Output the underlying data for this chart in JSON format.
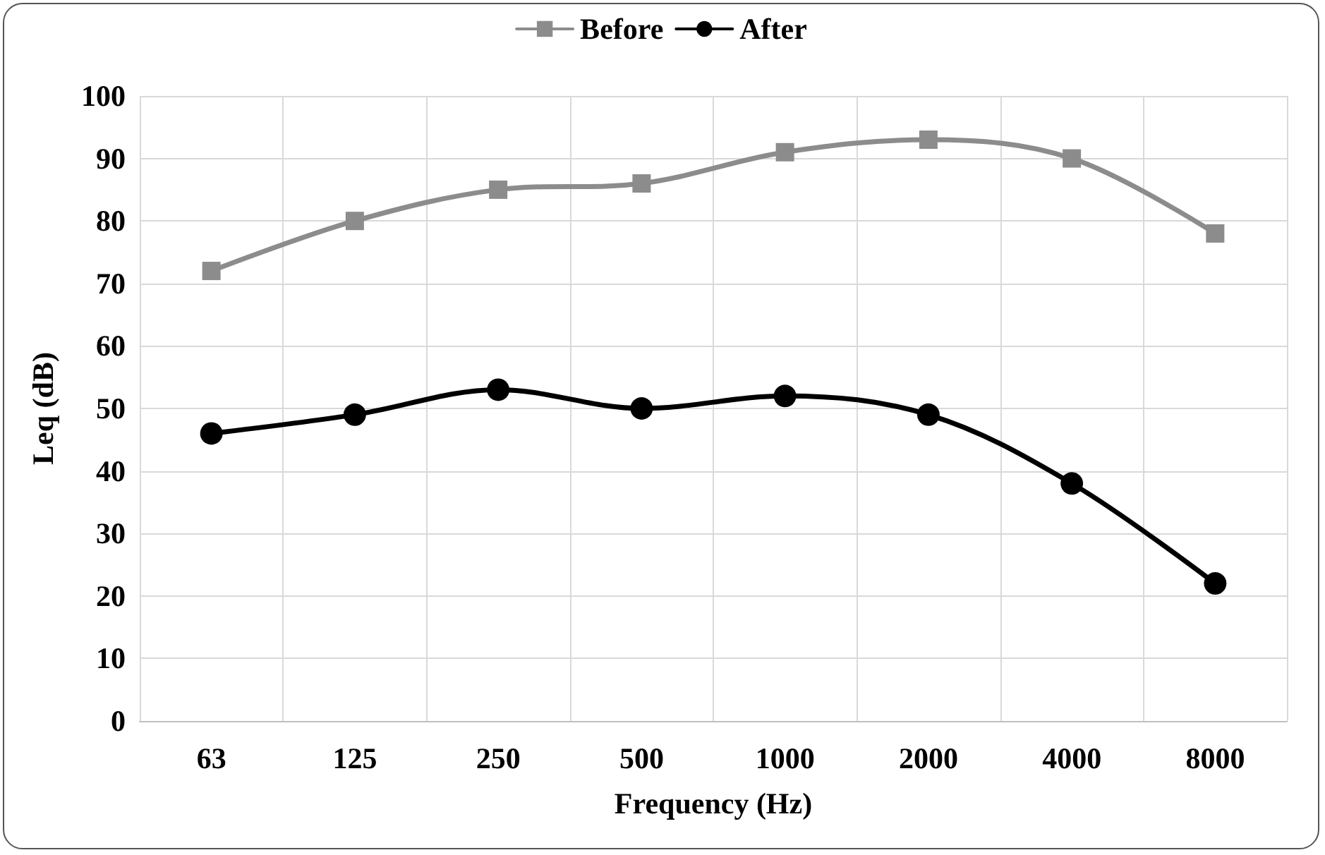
{
  "chart_data": {
    "type": "line",
    "xlabel": "Frequency (Hz)",
    "ylabel": "Leq (dB)",
    "categories": [
      "63",
      "125",
      "250",
      "500",
      "1000",
      "2000",
      "4000",
      "8000"
    ],
    "series": [
      {
        "name": "Before",
        "color": "#8c8c8c",
        "marker": "square",
        "values": [
          72,
          80,
          85,
          86,
          91,
          93,
          90,
          78
        ]
      },
      {
        "name": "After",
        "color": "#000000",
        "marker": "circle",
        "values": [
          46,
          49,
          53,
          50,
          52,
          49,
          38,
          22
        ]
      }
    ],
    "ylim": [
      0,
      100
    ],
    "yticks": [
      0,
      10,
      20,
      30,
      40,
      50,
      60,
      70,
      80,
      90,
      100
    ],
    "grid": true,
    "legend": "top",
    "line_style": "solid"
  }
}
